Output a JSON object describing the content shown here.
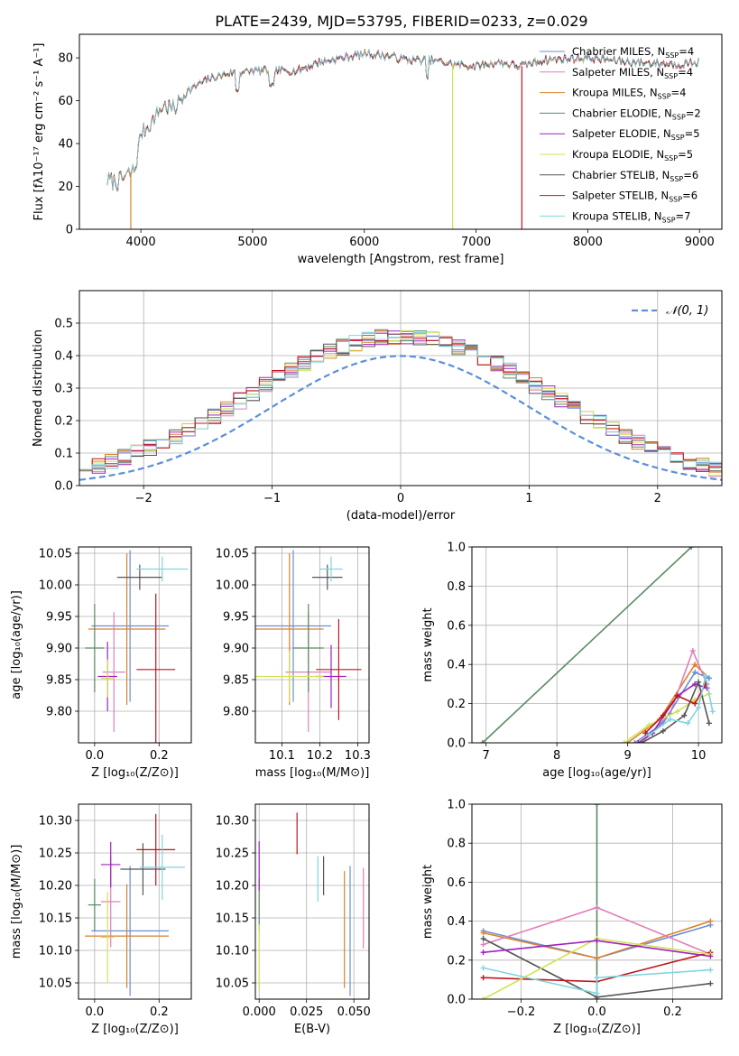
{
  "figure": {
    "suptitle": "PLATE=2439, MJD=53795, FIBERID=0233, z=0.029"
  },
  "chart_data": [
    {
      "id": "spectrum",
      "type": "line",
      "title": "PLATE=2439, MJD=53795, FIBERID=0233, z=0.029",
      "xlabel": "wavelength [Angstrom, rest frame]",
      "ylabel": "Flux [fλ10⁻¹⁷ erg cm⁻² s⁻¹ A⁻¹]",
      "xlim": [
        3450,
        9200
      ],
      "ylim": [
        0,
        91
      ],
      "xticks": [
        4000,
        5000,
        6000,
        7000,
        8000,
        9000
      ],
      "yticks": [
        0,
        20,
        40,
        60,
        80
      ],
      "grid": false,
      "legend_position": "top-right",
      "series": [
        {
          "name": "Chabrier MILES, N",
          "sub": "SSP",
          "suffix": "=4",
          "color": "#6b8ed6"
        },
        {
          "name": "Salpeter MILES, N",
          "sub": "SSP",
          "suffix": "=4",
          "color": "#e07fb8"
        },
        {
          "name": "Kroupa MILES, N",
          "sub": "SSP",
          "suffix": "=4",
          "color": "#d9822b"
        },
        {
          "name": "Chabrier ELODIE, N",
          "sub": "SSP",
          "suffix": "=2",
          "color": "#5a8a62"
        },
        {
          "name": "Salpeter ELODIE, N",
          "sub": "SSP",
          "suffix": "=5",
          "color": "#a020c0"
        },
        {
          "name": "Kroupa ELODIE, N",
          "sub": "SSP",
          "suffix": "=5",
          "color": "#d4e157"
        },
        {
          "name": "Chabrier STELIB, N",
          "sub": "SSP",
          "suffix": "=6",
          "color": "#555555"
        },
        {
          "name": "Salpeter STELIB, N",
          "sub": "SSP",
          "suffix": "=6",
          "color": "#c0141c"
        },
        {
          "name": "Kroupa STELIB, N",
          "sub": "SSP",
          "suffix": "=7",
          "color": "#7fd6e0"
        }
      ],
      "continuum": {
        "x": [
          3700,
          3800,
          3900,
          3950,
          4000,
          4100,
          4200,
          4300,
          4400,
          4500,
          4600,
          4800,
          5000,
          5200,
          5400,
          5600,
          5800,
          6000,
          6200,
          6400,
          6600,
          6800,
          7000,
          7200,
          7400,
          7600,
          8000,
          8400,
          8800,
          9000
        ],
        "y": [
          23,
          22,
          26,
          28,
          45,
          50,
          58,
          56,
          64,
          67,
          70,
          73,
          74,
          74,
          74,
          78,
          80,
          82,
          81,
          79,
          79,
          77,
          76,
          78,
          76,
          79,
          80,
          78,
          77,
          78
        ]
      },
      "drops": [
        {
          "x": 3910,
          "color": "#d9822b"
        },
        {
          "x": 6790,
          "color": "#d4e157"
        },
        {
          "x": 7410,
          "color": "#c0141c"
        }
      ]
    },
    {
      "id": "residuals",
      "type": "histogram",
      "xlabel": "(data-model)/error",
      "ylabel": "Normed distribution",
      "xlim": [
        -2.5,
        2.5
      ],
      "ylim": [
        0,
        0.6
      ],
      "xticks": [
        -2,
        -1,
        0,
        1,
        2
      ],
      "yticks": [
        0.0,
        0.1,
        0.2,
        0.3,
        0.4,
        0.5
      ],
      "grid": true,
      "legend_position": "top-right",
      "bin_width": 0.1,
      "series_colors": [
        "#6b8ed6",
        "#e07fb8",
        "#d9822b",
        "#5a8a62",
        "#a020c0",
        "#d4e157",
        "#555555",
        "#c0141c",
        "#7fd6e0"
      ],
      "reference": {
        "label": "𝒩(0, 1)",
        "color": "#5b8fd9",
        "mean": 0,
        "sigma": 1
      }
    },
    {
      "id": "age-vs-Z",
      "type": "scatter",
      "xlabel": "Z [log₁₀(Z/Z⊙)]",
      "ylabel": "age  [log₁₀(age/yr)]",
      "xlim": [
        -0.05,
        0.3
      ],
      "ylim": [
        9.75,
        10.06
      ],
      "xticks": [
        0.0,
        0.2
      ],
      "yticks": [
        9.8,
        9.85,
        9.9,
        9.95,
        10.0,
        10.05
      ],
      "grid": true,
      "points": [
        {
          "x": 0.11,
          "y": 9.935,
          "xerr": 0.12,
          "yerr": 0.12,
          "color": "#6b8ed6"
        },
        {
          "x": 0.06,
          "y": 9.862,
          "xerr": 0.035,
          "yerr": 0.095,
          "color": "#e07fb8"
        },
        {
          "x": 0.1,
          "y": 9.93,
          "xerr": 0.12,
          "yerr": 0.12,
          "color": "#d9822b"
        },
        {
          "x": 0.0,
          "y": 9.9,
          "xerr": 0.03,
          "yerr": 0.07,
          "color": "#5a8a62"
        },
        {
          "x": 0.04,
          "y": 9.855,
          "xerr": 0.03,
          "yerr": 0.055,
          "color": "#a020c0"
        },
        {
          "x": 0.04,
          "y": 9.852,
          "xerr": 0.02,
          "yerr": 0.03,
          "color": "#d4e157"
        },
        {
          "x": 0.14,
          "y": 10.012,
          "xerr": 0.07,
          "yerr": 0.02,
          "color": "#555555"
        },
        {
          "x": 0.19,
          "y": 9.866,
          "xerr": 0.06,
          "yerr": 0.12,
          "color": "#c0141c"
        },
        {
          "x": 0.21,
          "y": 10.025,
          "xerr": 0.08,
          "yerr": 0.02,
          "color": "#7fd6e0"
        }
      ]
    },
    {
      "id": "age-vs-mass",
      "type": "scatter",
      "xlabel": "mass [log₁₀(M/M⊙)]",
      "ylabel": "",
      "xlim": [
        10.03,
        10.33
      ],
      "ylim": [
        9.75,
        10.06
      ],
      "xticks": [
        10.1,
        10.2,
        10.3
      ],
      "yticks": [
        9.8,
        9.85,
        9.9,
        9.95,
        10.0,
        10.05
      ],
      "grid": true,
      "points": [
        {
          "x": 10.13,
          "y": 9.935,
          "xerr": 0.1,
          "yerr": 0.12,
          "color": "#6b8ed6"
        },
        {
          "x": 10.17,
          "y": 9.862,
          "xerr": 0.06,
          "yerr": 0.095,
          "color": "#e07fb8"
        },
        {
          "x": 10.12,
          "y": 9.93,
          "xerr": 0.09,
          "yerr": 0.12,
          "color": "#d9822b"
        },
        {
          "x": 10.17,
          "y": 9.9,
          "xerr": 0.04,
          "yerr": 0.07,
          "color": "#5a8a62"
        },
        {
          "x": 10.23,
          "y": 9.855,
          "xerr": 0.04,
          "yerr": 0.05,
          "color": "#a020c0"
        },
        {
          "x": 10.12,
          "y": 9.855,
          "xerr": 0.09,
          "yerr": 0.04,
          "color": "#d4e157"
        },
        {
          "x": 10.22,
          "y": 10.012,
          "xerr": 0.04,
          "yerr": 0.02,
          "color": "#555555"
        },
        {
          "x": 10.25,
          "y": 9.866,
          "xerr": 0.06,
          "yerr": 0.08,
          "color": "#c0141c"
        },
        {
          "x": 10.23,
          "y": 10.025,
          "xerr": 0.03,
          "yerr": 0.02,
          "color": "#7fd6e0"
        }
      ]
    },
    {
      "id": "mass-weight-vs-age",
      "type": "line",
      "xlabel": "age  [log₁₀(age/yr)]",
      "ylabel": "mass weight",
      "xlim": [
        6.8,
        10.33
      ],
      "ylim": [
        0,
        1.0
      ],
      "xticks": [
        7,
        8,
        9,
        10
      ],
      "yticks": [
        0.0,
        0.2,
        0.4,
        0.6,
        0.8,
        1.0
      ],
      "grid": true,
      "series": [
        {
          "color": "#5a8a62",
          "x": [
            6.95,
            9.9
          ],
          "y": [
            0.0,
            1.0
          ]
        },
        {
          "color": "#d9822b",
          "x": [
            9.0,
            9.45,
            9.95,
            10.15
          ],
          "y": [
            0.0,
            0.12,
            0.4,
            0.33
          ]
        },
        {
          "color": "#e07fb8",
          "x": [
            9.2,
            9.6,
            9.92,
            10.12
          ],
          "y": [
            0.0,
            0.15,
            0.47,
            0.3
          ]
        },
        {
          "color": "#6b8ed6",
          "x": [
            9.1,
            9.5,
            9.95,
            10.15
          ],
          "y": [
            0.0,
            0.1,
            0.36,
            0.33
          ]
        },
        {
          "color": "#d4e157",
          "x": [
            8.95,
            9.3,
            9.7,
            9.95,
            10.15
          ],
          "y": [
            0.0,
            0.09,
            0.16,
            0.22,
            0.25
          ]
        },
        {
          "color": "#a020c0",
          "x": [
            9.15,
            9.35,
            9.7,
            9.95,
            10.12
          ],
          "y": [
            0.0,
            0.05,
            0.24,
            0.3,
            0.28
          ]
        },
        {
          "color": "#555555",
          "x": [
            9.2,
            9.5,
            9.8,
            10.0,
            10.15
          ],
          "y": [
            0.0,
            0.06,
            0.14,
            0.31,
            0.1
          ]
        },
        {
          "color": "#c0141c",
          "x": [
            9.25,
            9.5,
            9.7,
            9.95,
            10.1
          ],
          "y": [
            0.05,
            0.14,
            0.24,
            0.2,
            0.3
          ]
        },
        {
          "color": "#7fd6e0",
          "x": [
            9.3,
            9.6,
            9.85,
            10.0,
            10.1,
            10.2
          ],
          "y": [
            0.04,
            0.12,
            0.1,
            0.18,
            0.34,
            0.16
          ]
        }
      ]
    },
    {
      "id": "mass-vs-Z",
      "type": "scatter",
      "xlabel": "Z [log₁₀(Z/Z⊙)]",
      "ylabel": "mass [log₁₀(M/M⊙)]",
      "xlim": [
        -0.05,
        0.3
      ],
      "ylim": [
        10.025,
        10.325
      ],
      "xticks": [
        0.0,
        0.2
      ],
      "yticks": [
        10.05,
        10.1,
        10.15,
        10.2,
        10.25,
        10.3
      ],
      "grid": true,
      "points": [
        {
          "x": 0.11,
          "y": 10.13,
          "xerr": 0.12,
          "yerr": 0.1,
          "color": "#6b8ed6"
        },
        {
          "x": 0.05,
          "y": 10.175,
          "xerr": 0.03,
          "yerr": 0.07,
          "color": "#e07fb8"
        },
        {
          "x": 0.1,
          "y": 10.122,
          "xerr": 0.13,
          "yerr": 0.08,
          "color": "#d9822b"
        },
        {
          "x": 0.0,
          "y": 10.17,
          "xerr": 0.02,
          "yerr": 0.04,
          "color": "#5a8a62"
        },
        {
          "x": 0.05,
          "y": 10.232,
          "xerr": 0.03,
          "yerr": 0.035,
          "color": "#a020c0"
        },
        {
          "x": 0.04,
          "y": 10.12,
          "xerr": 0.02,
          "yerr": 0.07,
          "color": "#d4e157"
        },
        {
          "x": 0.15,
          "y": 10.225,
          "xerr": 0.07,
          "yerr": 0.04,
          "color": "#555555"
        },
        {
          "x": 0.19,
          "y": 10.255,
          "xerr": 0.06,
          "yerr": 0.055,
          "color": "#c0141c"
        },
        {
          "x": 0.21,
          "y": 10.228,
          "xerr": 0.07,
          "yerr": 0.05,
          "color": "#7fd6e0"
        }
      ]
    },
    {
      "id": "mass-vs-EBV",
      "type": "scatter",
      "xlabel": "E(B-V)",
      "ylabel": "",
      "xlim": [
        -0.002,
        0.058
      ],
      "ylim": [
        10.025,
        10.325
      ],
      "xticks": [
        0.0,
        0.025,
        0.05
      ],
      "yticks": [
        10.05,
        10.1,
        10.15,
        10.2,
        10.25,
        10.3
      ],
      "grid": true,
      "points": [
        {
          "x": 0.048,
          "y": 10.13,
          "xerr": 0,
          "yerr": 0.1,
          "color": "#6b8ed6"
        },
        {
          "x": 0.055,
          "y": 10.165,
          "xerr": 0,
          "yerr": 0.062,
          "color": "#e07fb8"
        },
        {
          "x": 0.045,
          "y": 10.132,
          "xerr": 0,
          "yerr": 0.09,
          "color": "#d9822b"
        },
        {
          "x": 0.0,
          "y": 10.17,
          "xerr": 0,
          "yerr": 0.04,
          "color": "#5a8a62"
        },
        {
          "x": 0.0,
          "y": 10.23,
          "xerr": 0,
          "yerr": 0.038,
          "color": "#a020c0"
        },
        {
          "x": 0.0,
          "y": 10.09,
          "xerr": 0,
          "yerr": 0.05,
          "color": "#d4e157"
        },
        {
          "x": 0.034,
          "y": 10.215,
          "xerr": 0,
          "yerr": 0.03,
          "color": "#555555"
        },
        {
          "x": 0.02,
          "y": 10.28,
          "xerr": 0,
          "yerr": 0.032,
          "color": "#c0141c"
        },
        {
          "x": 0.031,
          "y": 10.21,
          "xerr": 0,
          "yerr": 0.035,
          "color": "#7fd6e0"
        }
      ]
    },
    {
      "id": "mass-weight-vs-Z",
      "type": "line",
      "xlabel": "Z [log₁₀(Z/Z⊙)]",
      "ylabel": "mass weight",
      "xlim": [
        -0.33,
        0.33
      ],
      "ylim": [
        0,
        1.0
      ],
      "xticks": [
        -0.2,
        0.0,
        0.2
      ],
      "yticks": [
        0.0,
        0.2,
        0.4,
        0.6,
        0.8,
        1.0
      ],
      "grid": true,
      "series": [
        {
          "color": "#5a8a62",
          "x": [
            0.0,
            0.0
          ],
          "y": [
            0.0,
            1.0
          ]
        },
        {
          "color": "#6b8ed6",
          "x": [
            -0.3,
            0.0,
            0.3
          ],
          "y": [
            0.35,
            0.21,
            0.38
          ]
        },
        {
          "color": "#d9822b",
          "x": [
            -0.3,
            0.0,
            0.3
          ],
          "y": [
            0.34,
            0.21,
            0.4
          ]
        },
        {
          "color": "#e07fb8",
          "x": [
            -0.3,
            0.0,
            0.3
          ],
          "y": [
            0.28,
            0.47,
            0.23
          ]
        },
        {
          "color": "#555555",
          "x": [
            -0.3,
            0.0,
            0.3
          ],
          "y": [
            0.31,
            0.01,
            0.08
          ]
        },
        {
          "color": "#c0141c",
          "x": [
            -0.3,
            0.0,
            0.3
          ],
          "y": [
            0.11,
            0.09,
            0.24
          ]
        },
        {
          "color": "#d4e157",
          "x": [
            -0.3,
            0.0,
            0.3
          ],
          "y": [
            0.0,
            0.31,
            0.23
          ]
        },
        {
          "color": "#a020c0",
          "x": [
            -0.3,
            0.0,
            0.3
          ],
          "y": [
            0.24,
            0.3,
            0.22
          ]
        },
        {
          "color": "#7fd6e0",
          "x": [
            -0.3,
            0.0,
            0.0,
            0.3
          ],
          "y": [
            0.16,
            0.03,
            0.11,
            0.15
          ]
        }
      ]
    }
  ]
}
